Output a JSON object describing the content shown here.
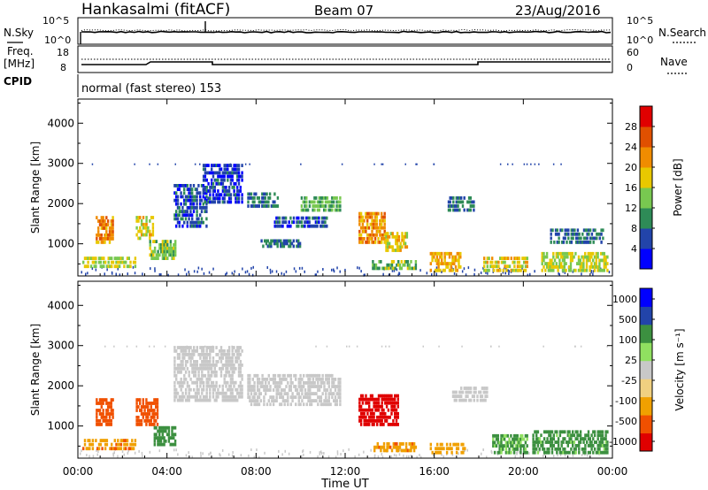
{
  "header": {
    "station": "Hankasalmi (fitACF)",
    "beam": "Beam 07",
    "date": "23/Aug/2016",
    "cpid_label": "CPID",
    "cpid_text": "normal (fast stereo) 153"
  },
  "noise_panel": {
    "left_label": "N.Sky",
    "right_label": "N.Search",
    "left_ticks": [
      "10^5",
      "10^0"
    ],
    "right_ticks": [
      "10^5",
      "10^0"
    ]
  },
  "freq_panel": {
    "left_label_1": "Freq.",
    "left_label_2": "[MHz]",
    "right_label": "Nave",
    "left_ticks": [
      "18",
      "8"
    ],
    "right_ticks": [
      "60",
      "0"
    ]
  },
  "colors": {
    "power_scale": [
      "#0000ff",
      "#2244aa",
      "#2e8b57",
      "#78c850",
      "#e8c800",
      "#f08c00",
      "#e05000",
      "#e00000"
    ],
    "velocity_scale": [
      "#e00000",
      "#f05000",
      "#f0a000",
      "#f0d080",
      "#c8c8c8",
      "#90e060",
      "#3c9040",
      "#2244aa",
      "#0000ff"
    ]
  },
  "chart_data": [
    {
      "type": "heatmap",
      "name": "power",
      "ylabel": "Slant Range [km]",
      "y_ticks": [
        "1000",
        "2000",
        "3000",
        "4000"
      ],
      "ylim": [
        200,
        4600
      ],
      "colorbar_label": "Power [dB]",
      "colorbar_ticks": [
        "4",
        "8",
        "12",
        "16",
        "20",
        "24",
        "28"
      ],
      "colorbar_range": [
        0,
        32
      ],
      "regions": [
        {
          "t": [
            0.8,
            1.6
          ],
          "r": [
            1000,
            1700
          ],
          "v": 22
        },
        {
          "t": [
            2.6,
            3.4
          ],
          "r": [
            1100,
            1700
          ],
          "v": 18
        },
        {
          "t": [
            3.2,
            4.4
          ],
          "r": [
            600,
            1100
          ],
          "v": 14
        },
        {
          "t": [
            0.2,
            2.6
          ],
          "r": [
            400,
            700
          ],
          "v": 16
        },
        {
          "t": [
            4.3,
            5.8
          ],
          "r": [
            1400,
            2500
          ],
          "v": 6
        },
        {
          "t": [
            5.6,
            7.4
          ],
          "r": [
            2000,
            3000
          ],
          "v": 5
        },
        {
          "t": [
            7.6,
            9.0
          ],
          "r": [
            1900,
            2300
          ],
          "v": 8
        },
        {
          "t": [
            8.2,
            10.0
          ],
          "r": [
            900,
            1100
          ],
          "v": 8
        },
        {
          "t": [
            8.8,
            11.2
          ],
          "r": [
            1400,
            1700
          ],
          "v": 6
        },
        {
          "t": [
            10.0,
            11.8
          ],
          "r": [
            1800,
            2200
          ],
          "v": 12
        },
        {
          "t": [
            12.6,
            13.8
          ],
          "r": [
            1000,
            1800
          ],
          "v": 22
        },
        {
          "t": [
            13.8,
            14.8
          ],
          "r": [
            800,
            1300
          ],
          "v": 18
        },
        {
          "t": [
            13.2,
            15.2
          ],
          "r": [
            350,
            600
          ],
          "v": 14
        },
        {
          "t": [
            15.8,
            17.2
          ],
          "r": [
            300,
            800
          ],
          "v": 20
        },
        {
          "t": [
            16.6,
            17.8
          ],
          "r": [
            1800,
            2200
          ],
          "v": 8
        },
        {
          "t": [
            18.2,
            20.2
          ],
          "r": [
            300,
            700
          ],
          "v": 18
        },
        {
          "t": [
            20.8,
            23.8
          ],
          "r": [
            300,
            800
          ],
          "v": 16
        },
        {
          "t": [
            21.2,
            23.6
          ],
          "r": [
            1000,
            1400
          ],
          "v": 8
        }
      ]
    },
    {
      "type": "heatmap",
      "name": "velocity",
      "ylabel": "Slant Range [km]",
      "y_ticks": [
        "1000",
        "2000",
        "3000",
        "4000"
      ],
      "ylim": [
        200,
        4600
      ],
      "xlabel": "Time UT",
      "x_ticks": [
        "00:00",
        "04:00",
        "08:00",
        "12:00",
        "16:00",
        "20:00",
        "00:00"
      ],
      "xlim": [
        0,
        24
      ],
      "colorbar_label": "Velocity [m s⁻¹]",
      "colorbar_ticks": [
        "1000",
        "500",
        "100",
        "25",
        "-25",
        "-100",
        "-500",
        "-1000"
      ],
      "regions": [
        {
          "t": [
            0.8,
            1.6
          ],
          "r": [
            1000,
            1700
          ],
          "v": -200
        },
        {
          "t": [
            2.6,
            3.6
          ],
          "r": [
            1000,
            1700
          ],
          "v": -150
        },
        {
          "t": [
            3.4,
            4.4
          ],
          "r": [
            500,
            1000
          ],
          "v": 200
        },
        {
          "t": [
            0.2,
            2.6
          ],
          "r": [
            400,
            700
          ],
          "v": -80
        },
        {
          "t": [
            4.3,
            7.4
          ],
          "r": [
            1600,
            3000
          ],
          "v": 0
        },
        {
          "t": [
            7.6,
            11.8
          ],
          "r": [
            1500,
            2300
          ],
          "v": 0
        },
        {
          "t": [
            12.6,
            14.4
          ],
          "r": [
            1000,
            1800
          ],
          "v": -800
        },
        {
          "t": [
            13.2,
            15.2
          ],
          "r": [
            350,
            600
          ],
          "v": -80
        },
        {
          "t": [
            15.8,
            17.4
          ],
          "r": [
            300,
            600
          ],
          "v": -60
        },
        {
          "t": [
            16.8,
            18.4
          ],
          "r": [
            1600,
            2000
          ],
          "v": 0
        },
        {
          "t": [
            18.6,
            20.2
          ],
          "r": [
            300,
            800
          ],
          "v": 120
        },
        {
          "t": [
            20.4,
            23.8
          ],
          "r": [
            300,
            900
          ],
          "v": 150
        }
      ]
    }
  ]
}
